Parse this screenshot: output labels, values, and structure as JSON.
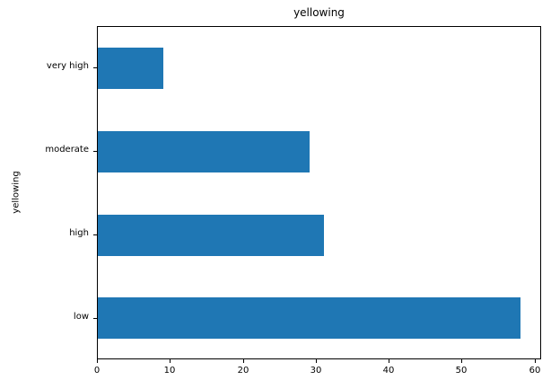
{
  "chart_data": {
    "type": "bar",
    "orientation": "horizontal",
    "title": "yellowing",
    "xlabel": "",
    "ylabel": "yellowing",
    "categories": [
      "very high",
      "moderate",
      "high",
      "low"
    ],
    "values": [
      9,
      29,
      31,
      58
    ],
    "x_ticks": [
      0,
      10,
      20,
      30,
      40,
      50,
      60
    ],
    "xlim": [
      0,
      60.9
    ],
    "bar_color": "#1f77b4",
    "bar_relative_height": 0.5,
    "grid": false,
    "legend": "none",
    "background_color": "#ffffff",
    "spine_color": "#000000"
  }
}
